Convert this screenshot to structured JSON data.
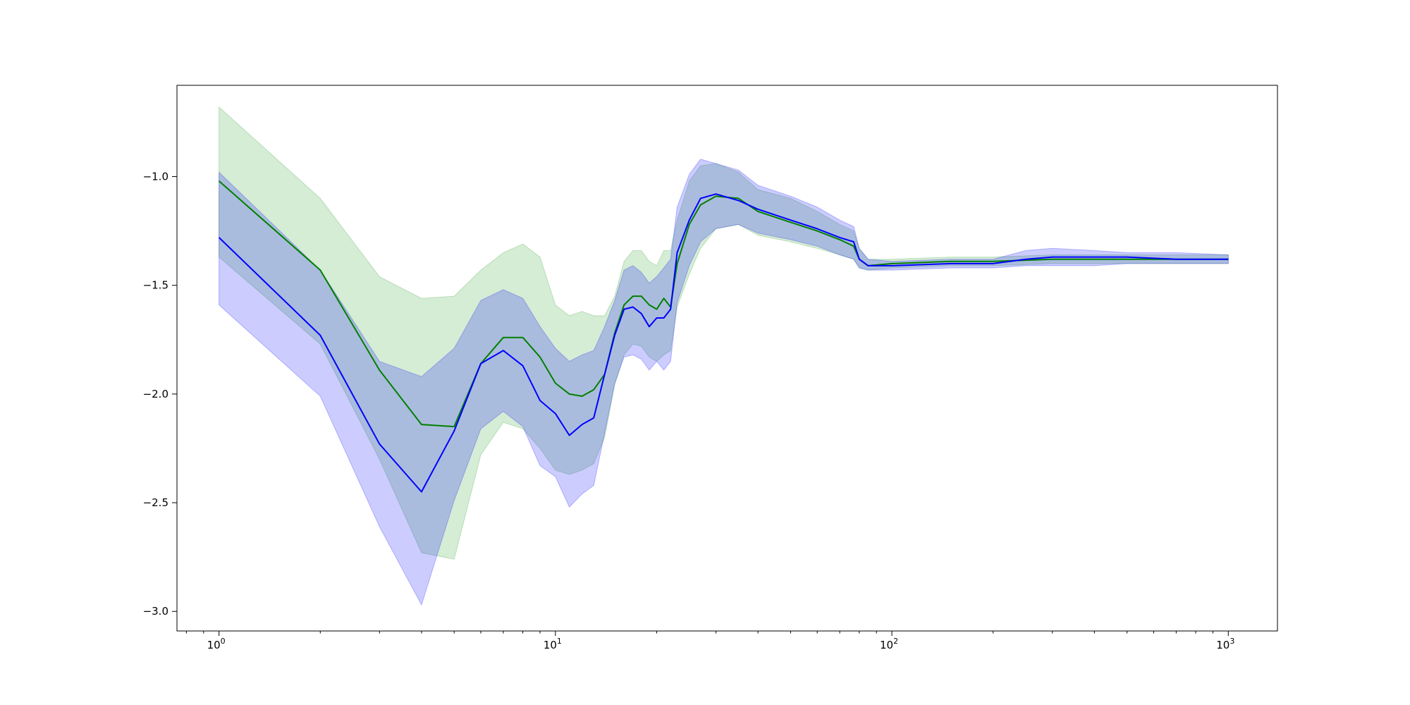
{
  "colors": {
    "green_line": "#008000",
    "green_band": "#2ca02c",
    "blue_line": "#0000ff",
    "blue_band": "#0000ff",
    "axes": "#000000",
    "background": "#ffffff"
  },
  "chart_data": {
    "type": "line",
    "title": "",
    "xlabel": "",
    "ylabel": "",
    "xscale": "log",
    "xlim": [
      0.75,
      1400
    ],
    "ylim": [
      -3.09,
      -0.58
    ],
    "grid": false,
    "legend": "none",
    "x_ticks": [
      {
        "value": 1,
        "base": "10",
        "exp": "0"
      },
      {
        "value": 10,
        "base": "10",
        "exp": "1"
      },
      {
        "value": 100,
        "base": "10",
        "exp": "2"
      },
      {
        "value": 1000,
        "base": "10",
        "exp": "3"
      }
    ],
    "y_ticks": [
      {
        "value": -1.0,
        "label": "−1.0"
      },
      {
        "value": -1.5,
        "label": "−1.5"
      },
      {
        "value": -2.0,
        "label": "−2.0"
      },
      {
        "value": -2.5,
        "label": "−2.5"
      },
      {
        "value": -3.0,
        "label": "−3.0"
      }
    ],
    "series": [
      {
        "color_key": "green",
        "points": [
          [
            1,
            -1.02,
            -1.37,
            -0.68
          ],
          [
            2,
            -1.43,
            -1.77,
            -1.1
          ],
          [
            3,
            -1.89,
            -2.3,
            -1.46
          ],
          [
            4,
            -2.14,
            -2.73,
            -1.56
          ],
          [
            5,
            -2.15,
            -2.76,
            -1.55
          ],
          [
            6,
            -1.86,
            -2.28,
            -1.43
          ],
          [
            7,
            -1.74,
            -2.13,
            -1.35
          ],
          [
            8,
            -1.74,
            -2.16,
            -1.31
          ],
          [
            9,
            -1.83,
            -2.25,
            -1.37
          ],
          [
            10,
            -1.95,
            -2.35,
            -1.59
          ],
          [
            11,
            -2.0,
            -2.37,
            -1.64
          ],
          [
            12,
            -2.01,
            -2.35,
            -1.62
          ],
          [
            13,
            -1.98,
            -2.32,
            -1.64
          ],
          [
            14,
            -1.91,
            -2.2,
            -1.64
          ],
          [
            15,
            -1.72,
            -1.96,
            -1.55
          ],
          [
            16,
            -1.59,
            -1.82,
            -1.39
          ],
          [
            17,
            -1.55,
            -1.77,
            -1.34
          ],
          [
            18,
            -1.55,
            -1.78,
            -1.34
          ],
          [
            19,
            -1.59,
            -1.83,
            -1.39
          ],
          [
            20,
            -1.61,
            -1.85,
            -1.41
          ],
          [
            21,
            -1.56,
            -1.82,
            -1.34
          ],
          [
            22,
            -1.6,
            -1.8,
            -1.34
          ],
          [
            23,
            -1.4,
            -1.6,
            -1.2
          ],
          [
            25,
            -1.22,
            -1.45,
            -1.02
          ],
          [
            27,
            -1.13,
            -1.33,
            -0.95
          ],
          [
            30,
            -1.09,
            -1.24,
            -0.94
          ],
          [
            35,
            -1.1,
            -1.22,
            -0.98
          ],
          [
            40,
            -1.16,
            -1.27,
            -1.06
          ],
          [
            50,
            -1.21,
            -1.3,
            -1.1
          ],
          [
            60,
            -1.25,
            -1.33,
            -1.16
          ],
          [
            70,
            -1.29,
            -1.36,
            -1.22
          ],
          [
            77,
            -1.32,
            -1.38,
            -1.25
          ],
          [
            80,
            -1.38,
            -1.42,
            -1.33
          ],
          [
            85,
            -1.41,
            -1.43,
            -1.38
          ],
          [
            100,
            -1.4,
            -1.42,
            -1.38
          ],
          [
            150,
            -1.39,
            -1.41,
            -1.37
          ],
          [
            200,
            -1.39,
            -1.41,
            -1.37
          ],
          [
            300,
            -1.38,
            -1.4,
            -1.36
          ],
          [
            500,
            -1.38,
            -1.4,
            -1.36
          ],
          [
            700,
            -1.38,
            -1.4,
            -1.36
          ],
          [
            1000,
            -1.38,
            -1.4,
            -1.36
          ]
        ]
      },
      {
        "color_key": "blue",
        "points": [
          [
            1,
            -1.28,
            -1.59,
            -0.98
          ],
          [
            2,
            -1.73,
            -2.01,
            -1.43
          ],
          [
            3,
            -2.23,
            -2.61,
            -1.85
          ],
          [
            4,
            -2.45,
            -2.97,
            -1.92
          ],
          [
            5,
            -2.17,
            -2.49,
            -1.79
          ],
          [
            6,
            -1.86,
            -2.16,
            -1.57
          ],
          [
            7,
            -1.8,
            -2.08,
            -1.52
          ],
          [
            8,
            -1.87,
            -2.15,
            -1.56
          ],
          [
            9,
            -2.03,
            -2.33,
            -1.69
          ],
          [
            10,
            -2.09,
            -2.38,
            -1.79
          ],
          [
            11,
            -2.19,
            -2.52,
            -1.85
          ],
          [
            12,
            -2.14,
            -2.46,
            -1.82
          ],
          [
            13,
            -2.11,
            -2.42,
            -1.8
          ],
          [
            14,
            -1.91,
            -2.18,
            -1.69
          ],
          [
            15,
            -1.73,
            -1.95,
            -1.57
          ],
          [
            16,
            -1.61,
            -1.83,
            -1.43
          ],
          [
            17,
            -1.6,
            -1.82,
            -1.41
          ],
          [
            18,
            -1.63,
            -1.84,
            -1.44
          ],
          [
            19,
            -1.69,
            -1.89,
            -1.49
          ],
          [
            20,
            -1.65,
            -1.85,
            -1.46
          ],
          [
            21,
            -1.65,
            -1.89,
            -1.42
          ],
          [
            22,
            -1.61,
            -1.85,
            -1.38
          ],
          [
            23,
            -1.35,
            -1.58,
            -1.14
          ],
          [
            25,
            -1.2,
            -1.41,
            -0.99
          ],
          [
            27,
            -1.1,
            -1.3,
            -0.92
          ],
          [
            30,
            -1.08,
            -1.24,
            -0.94
          ],
          [
            35,
            -1.11,
            -1.22,
            -0.97
          ],
          [
            40,
            -1.15,
            -1.26,
            -1.04
          ],
          [
            50,
            -1.2,
            -1.29,
            -1.09
          ],
          [
            60,
            -1.24,
            -1.32,
            -1.14
          ],
          [
            70,
            -1.28,
            -1.36,
            -1.2
          ],
          [
            77,
            -1.3,
            -1.38,
            -1.23
          ],
          [
            80,
            -1.38,
            -1.42,
            -1.33
          ],
          [
            85,
            -1.41,
            -1.43,
            -1.38
          ],
          [
            100,
            -1.41,
            -1.43,
            -1.39
          ],
          [
            150,
            -1.4,
            -1.42,
            -1.38
          ],
          [
            200,
            -1.4,
            -1.42,
            -1.38
          ],
          [
            250,
            -1.38,
            -1.41,
            -1.34
          ],
          [
            300,
            -1.37,
            -1.41,
            -1.33
          ],
          [
            400,
            -1.37,
            -1.41,
            -1.34
          ],
          [
            500,
            -1.37,
            -1.4,
            -1.35
          ],
          [
            700,
            -1.38,
            -1.4,
            -1.35
          ],
          [
            1000,
            -1.38,
            -1.4,
            -1.36
          ]
        ]
      }
    ]
  }
}
